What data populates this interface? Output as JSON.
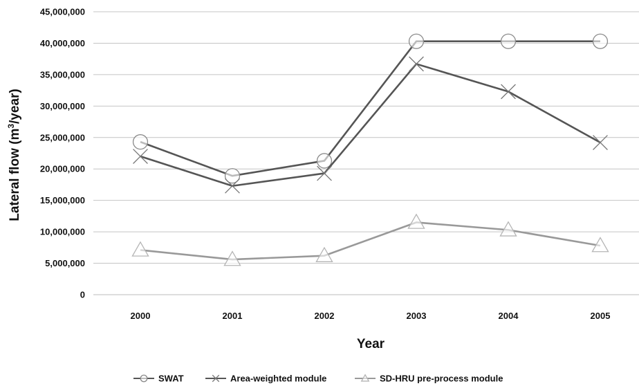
{
  "chart_data": {
    "type": "line",
    "title": "",
    "xlabel": "Year",
    "ylabel_main": "Lateral flow (m",
    "ylabel_sup": "3",
    "ylabel_tail": "/year)",
    "categories": [
      "2000",
      "2001",
      "2002",
      "2003",
      "2004",
      "2005"
    ],
    "yticks": [
      "0",
      "5,000,000",
      "10,000,000",
      "15,000,000",
      "20,000,000",
      "25,000,000",
      "30,000,000",
      "35,000,000",
      "40,000,000",
      "45,000,000"
    ],
    "ylim": [
      0,
      45000000
    ],
    "grid": true,
    "legend_position": "bottom",
    "series": [
      {
        "name": "SWAT",
        "marker": "circle",
        "color": "#555555",
        "values": [
          24300000,
          18900000,
          21300000,
          40300000,
          40300000,
          40300000
        ]
      },
      {
        "name": "Area-weighted module",
        "marker": "x",
        "color": "#555555",
        "values": [
          22000000,
          17300000,
          19300000,
          36700000,
          32300000,
          24200000
        ]
      },
      {
        "name": "SD-HRU pre-process module",
        "marker": "triangle",
        "color": "#999999",
        "values": [
          7100000,
          5600000,
          6200000,
          11500000,
          10300000,
          7800000
        ]
      }
    ]
  }
}
